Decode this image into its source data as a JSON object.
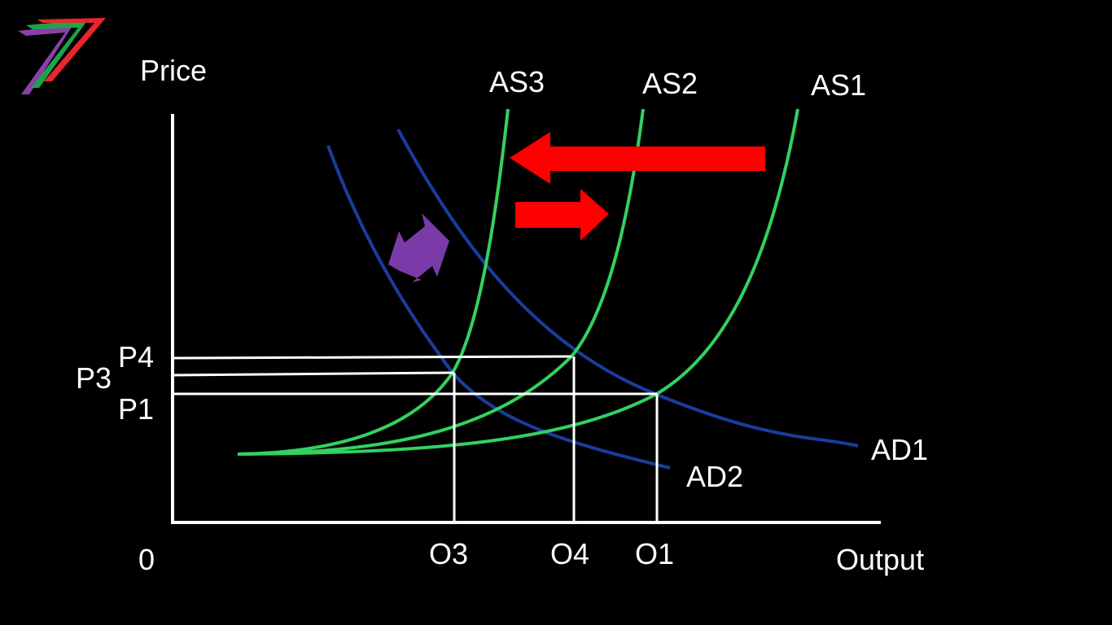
{
  "colors": {
    "background": "#000000",
    "axis": "#ffffff",
    "ad_curve": "#1a3d9c",
    "as_curve": "#33d160",
    "shift_arrow": "#ff0000",
    "ambiguous_arrow": "#7a3aa8",
    "logo": [
      "#8b3fa8",
      "#1fa34a",
      "#e8262c"
    ]
  },
  "axes": {
    "y_label": "Price",
    "x_label": "Output",
    "origin_label": "0"
  },
  "curves": {
    "ad": [
      {
        "label": "AD1"
      },
      {
        "label": "AD2"
      }
    ],
    "as": [
      {
        "label": "AS1"
      },
      {
        "label": "AS2"
      },
      {
        "label": "AS3"
      }
    ]
  },
  "price_levels": [
    {
      "label": "P4"
    },
    {
      "label": "P3"
    },
    {
      "label": "P1"
    }
  ],
  "output_levels": [
    {
      "label": "O3"
    },
    {
      "label": "O4"
    },
    {
      "label": "O1"
    }
  ],
  "arrows": [
    {
      "name": "as-shift-left-arrow",
      "icon": "arrow-left-icon"
    },
    {
      "name": "as-shift-right-arrow",
      "icon": "arrow-right-icon"
    },
    {
      "name": "ad-shift-double-arrow",
      "icon": "double-arrow-icon"
    }
  ],
  "logo": {
    "icon": "seven-stripes-logo-icon"
  }
}
